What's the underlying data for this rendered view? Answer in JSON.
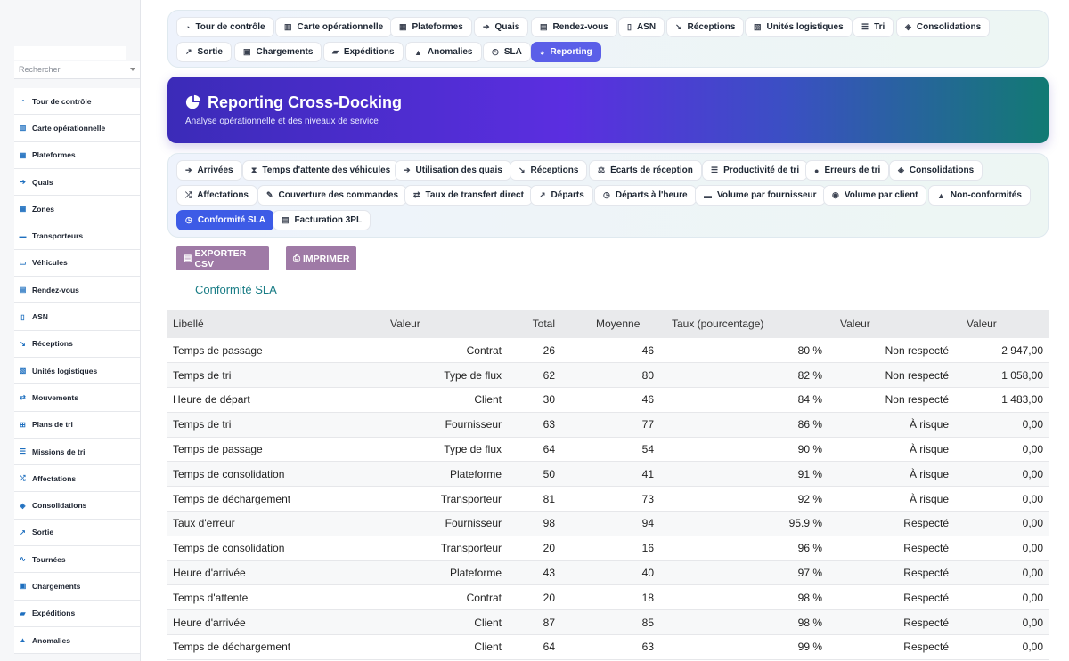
{
  "sidebar": {
    "search_placeholder": "Rechercher",
    "items": [
      {
        "label": "Tour de contrôle",
        "icon": "gauge-icon"
      },
      {
        "label": "Carte opérationnelle",
        "icon": "map-icon"
      },
      {
        "label": "Plateformes",
        "icon": "warehouse-icon"
      },
      {
        "label": "Quais",
        "icon": "dock-icon"
      },
      {
        "label": "Zones",
        "icon": "grid-icon"
      },
      {
        "label": "Transporteurs",
        "icon": "truck-icon"
      },
      {
        "label": "Véhicules",
        "icon": "bus-icon"
      },
      {
        "label": "Rendez-vous",
        "icon": "calendar-icon"
      },
      {
        "label": "ASN",
        "icon": "file-icon"
      },
      {
        "label": "Réceptions",
        "icon": "dolly-icon"
      },
      {
        "label": "Unités logistiques",
        "icon": "pallet-icon"
      },
      {
        "label": "Mouvements",
        "icon": "arrows-icon"
      },
      {
        "label": "Plans de tri",
        "icon": "sitemap-icon"
      },
      {
        "label": "Missions de tri",
        "icon": "list-icon"
      },
      {
        "label": "Affectations",
        "icon": "shuffle-icon"
      },
      {
        "label": "Consolidations",
        "icon": "layers-icon"
      },
      {
        "label": "Sortie",
        "icon": "exit-icon"
      },
      {
        "label": "Tournées",
        "icon": "route-icon"
      },
      {
        "label": "Chargements",
        "icon": "loading-icon"
      },
      {
        "label": "Expéditions",
        "icon": "shipping-icon"
      },
      {
        "label": "Anomalies",
        "icon": "warning-icon"
      }
    ]
  },
  "topnav": {
    "tabs": [
      {
        "label": "Tour de contrôle",
        "icon": "gauge-icon"
      },
      {
        "label": "Carte opérationnelle",
        "icon": "map-icon"
      },
      {
        "label": "Plateformes",
        "icon": "warehouse-icon"
      },
      {
        "label": "Quais",
        "icon": "dock-icon"
      },
      {
        "label": "Rendez-vous",
        "icon": "calendar-icon"
      },
      {
        "label": "ASN",
        "icon": "file-icon"
      },
      {
        "label": "Réceptions",
        "icon": "dolly-icon"
      },
      {
        "label": "Unités logistiques",
        "icon": "pallet-icon"
      },
      {
        "label": "Tri",
        "icon": "list-icon"
      },
      {
        "label": "Consolidations",
        "icon": "layers-icon"
      },
      {
        "label": "Sortie",
        "icon": "exit-icon"
      },
      {
        "label": "Chargements",
        "icon": "loading-icon"
      },
      {
        "label": "Expéditions",
        "icon": "shipping-icon"
      },
      {
        "label": "Anomalies",
        "icon": "warning-icon"
      },
      {
        "label": "SLA",
        "icon": "stopwatch-icon"
      },
      {
        "label": "Reporting",
        "icon": "chart-pie-icon"
      }
    ],
    "active": "Reporting"
  },
  "header": {
    "title": "Reporting Cross-Docking",
    "subtitle": "Analyse opérationnelle et des niveaux de service",
    "colors": {
      "start": "#3b2bb8",
      "mid": "#5b2ee0",
      "end": "#127a73"
    }
  },
  "report_tabs": {
    "tabs": [
      {
        "label": "Arrivées",
        "icon": "arrow-in-icon"
      },
      {
        "label": "Temps d'attente des véhicules",
        "icon": "hourglass-icon"
      },
      {
        "label": "Utilisation des quais",
        "icon": "dock-icon"
      },
      {
        "label": "Réceptions",
        "icon": "dolly-icon"
      },
      {
        "label": "Écarts de réception",
        "icon": "scale-icon"
      },
      {
        "label": "Productivité de tri",
        "icon": "list-icon"
      },
      {
        "label": "Erreurs de tri",
        "icon": "error-icon"
      },
      {
        "label": "Consolidations",
        "icon": "layers-icon"
      },
      {
        "label": "Affectations",
        "icon": "shuffle-icon"
      },
      {
        "label": "Couverture des commandes",
        "icon": "edit-icon"
      },
      {
        "label": "Taux de transfert direct",
        "icon": "transfer-icon"
      },
      {
        "label": "Départs",
        "icon": "exit-icon"
      },
      {
        "label": "Départs à l'heure",
        "icon": "clock-icon"
      },
      {
        "label": "Volume par fournisseur",
        "icon": "truck-icon"
      },
      {
        "label": "Volume par client",
        "icon": "users-icon"
      },
      {
        "label": "Non-conformités",
        "icon": "warning-icon"
      },
      {
        "label": "Conformité SLA",
        "icon": "stopwatch-icon"
      },
      {
        "label": "Facturation 3PL",
        "icon": "invoice-icon"
      }
    ],
    "active": "Conformité SLA"
  },
  "actions": {
    "export_label": "EXPORTER CSV",
    "print_label": "IMPRIMER"
  },
  "section": {
    "title": "Conformité SLA"
  },
  "table": {
    "headers": [
      "Libellé",
      "Valeur",
      "Total",
      "Moyenne",
      "Taux (pourcentage)",
      "Valeur",
      "Valeur"
    ],
    "rows": [
      [
        "Temps de passage",
        "Contrat",
        "26",
        "46",
        "80 %",
        "Non respecté",
        "2 947,00"
      ],
      [
        "Temps de tri",
        "Type de flux",
        "62",
        "80",
        "82 %",
        "Non respecté",
        "1 058,00"
      ],
      [
        "Heure de départ",
        "Client",
        "30",
        "46",
        "84 %",
        "Non respecté",
        "1 483,00"
      ],
      [
        "Temps de tri",
        "Fournisseur",
        "63",
        "77",
        "86 %",
        "À risque",
        "0,00"
      ],
      [
        "Temps de passage",
        "Type de flux",
        "64",
        "54",
        "90 %",
        "À risque",
        "0,00"
      ],
      [
        "Temps de consolidation",
        "Plateforme",
        "50",
        "41",
        "91 %",
        "À risque",
        "0,00"
      ],
      [
        "Temps de déchargement",
        "Transporteur",
        "81",
        "73",
        "92 %",
        "À risque",
        "0,00"
      ],
      [
        "Taux d'erreur",
        "Fournisseur",
        "98",
        "94",
        "95.9 %",
        "Respecté",
        "0,00"
      ],
      [
        "Temps de consolidation",
        "Transporteur",
        "20",
        "16",
        "96 %",
        "Respecté",
        "0,00"
      ],
      [
        "Heure d'arrivée",
        "Plateforme",
        "43",
        "40",
        "97 %",
        "Respecté",
        "0,00"
      ],
      [
        "Temps d'attente",
        "Contrat",
        "20",
        "18",
        "98 %",
        "Respecté",
        "0,00"
      ],
      [
        "Heure d'arrivée",
        "Client",
        "87",
        "85",
        "98 %",
        "Respecté",
        "0,00"
      ],
      [
        "Temps de déchargement",
        "Client",
        "64",
        "63",
        "99 %",
        "Respecté",
        "0,00"
      ]
    ]
  }
}
